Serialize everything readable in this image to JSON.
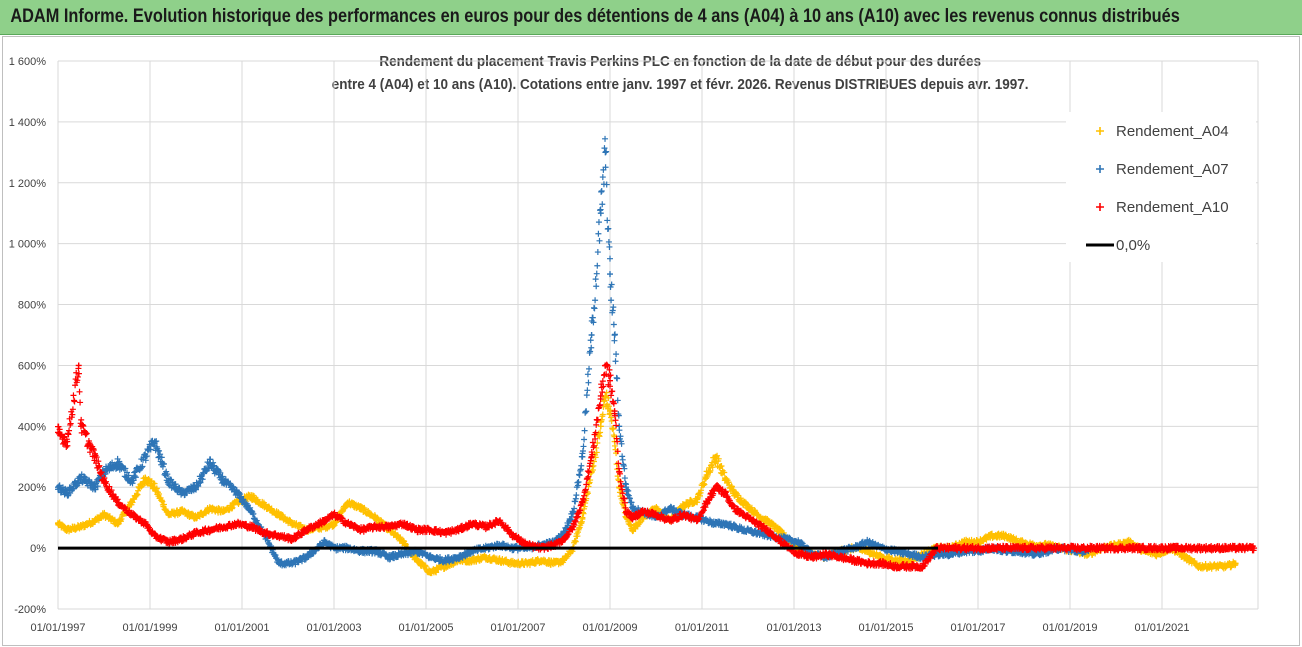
{
  "banner": {
    "title": "ADAM Informe. Evolution historique des performances en euros pour des détentions de 4 ans (A04) à 10 ans (A10) avec les revenus connus distribués"
  },
  "colors": {
    "A04": "#ffc000",
    "A07": "#2e75b6",
    "A10": "#ff0000",
    "zero": "#000000",
    "grid": "#d9d9d9",
    "banner": "#8fd08a"
  },
  "chart_data": {
    "type": "scatter",
    "title_line1": "Rendement du placement Travis Perkins PLC en fonction de la date de début pour des durées",
    "title_line2": "entre 4 (A04) et 10 ans (A10).  Cotations entre janv. 1997 et févr. 2026. Revenus DISTRIBUES depuis avr. 1997.",
    "x_range": [
      1997.0,
      2023.0
    ],
    "ylim": [
      -200,
      1600
    ],
    "y_ticks": [
      {
        "v": 1600,
        "label": "1 600%"
      },
      {
        "v": 1400,
        "label": "1 400%"
      },
      {
        "v": 1200,
        "label": "1 200%"
      },
      {
        "v": 1000,
        "label": "1 000%"
      },
      {
        "v": 800,
        "label": "800%"
      },
      {
        "v": 600,
        "label": "600%"
      },
      {
        "v": 400,
        "label": "400%"
      },
      {
        "v": 200,
        "label": "200%"
      },
      {
        "v": 0,
        "label": "0%"
      },
      {
        "v": -200,
        "label": "-200%"
      }
    ],
    "x_ticks": [
      {
        "v": 1997,
        "label": "01/01/1997"
      },
      {
        "v": 1999,
        "label": "01/01/1999"
      },
      {
        "v": 2001,
        "label": "01/01/2001"
      },
      {
        "v": 2003,
        "label": "01/01/2003"
      },
      {
        "v": 2005,
        "label": "01/01/2005"
      },
      {
        "v": 2007,
        "label": "01/01/2007"
      },
      {
        "v": 2009,
        "label": "01/01/2009"
      },
      {
        "v": 2011,
        "label": "01/01/2011"
      },
      {
        "v": 2013,
        "label": "01/01/2013"
      },
      {
        "v": 2015,
        "label": "01/01/2015"
      },
      {
        "v": 2017,
        "label": "01/01/2017"
      },
      {
        "v": 2019,
        "label": "01/01/2019"
      },
      {
        "v": 2021,
        "label": "01/01/2021"
      }
    ],
    "legend": [
      "Rendement_A04",
      "Rendement_A07",
      "Rendement_A10",
      "0,0%"
    ],
    "series": [
      {
        "name": "Rendement_A04",
        "x": [
          1997.0,
          1997.2,
          1997.5,
          1997.8,
          1998.0,
          1998.3,
          1998.6,
          1998.9,
          1999.1,
          1999.4,
          1999.7,
          2000.0,
          2000.3,
          2000.6,
          2000.9,
          2001.2,
          2001.5,
          2001.8,
          2002.1,
          2002.4,
          2002.8,
          2003.0,
          2003.3,
          2003.6,
          2003.9,
          2004.2,
          2004.5,
          2004.8,
          2005.1,
          2005.4,
          2005.7,
          2006.0,
          2006.3,
          2006.6,
          2006.9,
          2007.2,
          2007.5,
          2007.8,
          2008.0,
          2008.2,
          2008.4,
          2008.6,
          2008.8,
          2008.9,
          2009.0,
          2009.1,
          2009.2,
          2009.35,
          2009.5,
          2009.7,
          2010.0,
          2010.3,
          2010.6,
          2010.9,
          2011.1,
          2011.3,
          2011.5,
          2011.7,
          2011.9,
          2012.2,
          2012.5,
          2012.8,
          2013.1,
          2013.4,
          2013.7,
          2014.0,
          2014.3,
          2014.6,
          2014.9,
          2015.2,
          2015.5,
          2015.8,
          2016.1,
          2016.4,
          2016.7,
          2017.0,
          2017.3,
          2017.6,
          2017.9,
          2018.2,
          2018.5,
          2018.8,
          2019.1,
          2019.4,
          2019.7,
          2020.0,
          2020.3,
          2020.6,
          2020.9,
          2021.2,
          2021.5,
          2021.8,
          2022.1,
          2022.4,
          2022.6
        ],
        "y": [
          80,
          60,
          70,
          90,
          110,
          80,
          150,
          230,
          200,
          110,
          120,
          100,
          130,
          120,
          150,
          170,
          140,
          110,
          80,
          60,
          70,
          80,
          150,
          130,
          100,
          60,
          20,
          -40,
          -80,
          -60,
          -40,
          -40,
          -30,
          -40,
          -50,
          -50,
          -40,
          -50,
          -40,
          0,
          100,
          250,
          400,
          500,
          450,
          350,
          200,
          100,
          60,
          100,
          130,
          90,
          140,
          160,
          240,
          300,
          230,
          180,
          150,
          110,
          80,
          40,
          0,
          -20,
          -30,
          -10,
          0,
          -10,
          -30,
          -40,
          -40,
          -20,
          0,
          0,
          20,
          20,
          40,
          40,
          20,
          10,
          10,
          0,
          -10,
          -20,
          0,
          10,
          20,
          -10,
          -20,
          0,
          -30,
          -60,
          -60,
          -60,
          -50
        ]
      },
      {
        "name": "Rendement_A07",
        "x": [
          1997.0,
          1997.2,
          1997.5,
          1997.8,
          1998.0,
          1998.3,
          1998.6,
          1998.9,
          1999.1,
          1999.4,
          1999.7,
          2000.0,
          2000.3,
          2000.6,
          2000.9,
          2001.2,
          2001.5,
          2001.8,
          2002.1,
          2002.4,
          2002.8,
          2003.0,
          2003.3,
          2003.6,
          2003.9,
          2004.2,
          2004.5,
          2004.8,
          2005.1,
          2005.4,
          2005.7,
          2006.0,
          2006.3,
          2006.6,
          2006.9,
          2007.2,
          2007.5,
          2007.8,
          2008.0,
          2008.2,
          2008.4,
          2008.6,
          2008.8,
          2008.9,
          2009.0,
          2009.1,
          2009.2,
          2009.35,
          2009.5,
          2009.7,
          2010.0,
          2010.3,
          2010.6,
          2010.9,
          2011.1,
          2011.3,
          2011.5,
          2011.7,
          2011.9,
          2012.2,
          2012.5,
          2012.8,
          2013.1,
          2013.4,
          2013.7,
          2014.0,
          2014.3,
          2014.6,
          2014.9,
          2015.2,
          2015.5,
          2015.8,
          2016.1,
          2016.4,
          2016.7,
          2017.0,
          2017.3,
          2017.6,
          2017.9,
          2018.2,
          2018.5,
          2018.8,
          2019.1,
          2019.4
        ],
        "y": [
          200,
          180,
          230,
          200,
          250,
          280,
          220,
          300,
          350,
          220,
          180,
          200,
          280,
          220,
          180,
          120,
          40,
          -50,
          -50,
          -30,
          20,
          0,
          0,
          -10,
          -10,
          -30,
          -20,
          -10,
          -30,
          -40,
          -30,
          -10,
          0,
          10,
          0,
          0,
          10,
          20,
          50,
          120,
          300,
          700,
          1100,
          1300,
          900,
          700,
          400,
          200,
          130,
          120,
          100,
          130,
          110,
          100,
          90,
          80,
          80,
          70,
          60,
          50,
          40,
          30,
          20,
          -20,
          -30,
          -10,
          0,
          20,
          0,
          -10,
          -20,
          -30,
          -20,
          -20,
          -10,
          -10,
          0,
          -10,
          -10,
          -20,
          -10,
          0,
          -10,
          -10
        ]
      },
      {
        "name": "Rendement_A10",
        "x": [
          1997.0,
          1997.2,
          1997.45,
          1997.5,
          1997.8,
          1998.0,
          1998.3,
          1998.6,
          1998.9,
          1999.1,
          1999.4,
          1999.7,
          2000.0,
          2000.3,
          2000.6,
          2000.9,
          2001.2,
          2001.5,
          2001.8,
          2002.1,
          2002.4,
          2002.8,
          2003.0,
          2003.3,
          2003.6,
          2003.9,
          2004.2,
          2004.5,
          2004.8,
          2005.1,
          2005.4,
          2005.7,
          2006.0,
          2006.3,
          2006.6,
          2006.9,
          2007.2,
          2007.5,
          2007.8,
          2008.0,
          2008.2,
          2008.4,
          2008.6,
          2008.8,
          2008.9,
          2009.0,
          2009.1,
          2009.2,
          2009.35,
          2009.5,
          2009.7,
          2010.0,
          2010.3,
          2010.6,
          2010.9,
          2011.1,
          2011.3,
          2011.5,
          2011.7,
          2011.9,
          2012.2,
          2012.5,
          2012.8,
          2013.1,
          2013.4,
          2013.7,
          2014.0,
          2014.3,
          2014.6,
          2014.9,
          2015.2,
          2015.5,
          2015.8,
          2016.1,
          2016.4,
          2016.7,
          2017.0,
          2017.3,
          2017.6,
          2017.9,
          2018.2,
          2018.5,
          2018.8,
          2019.1,
          2019.4,
          2019.7,
          2020.0,
          2020.3,
          2020.6,
          2020.9,
          2021.2,
          2021.5,
          2021.8,
          2022.1,
          2022.4,
          2022.7,
          2023.0
        ],
        "y": [
          380,
          350,
          600,
          400,
          300,
          220,
          150,
          110,
          80,
          40,
          20,
          30,
          50,
          60,
          70,
          80,
          70,
          50,
          40,
          30,
          60,
          90,
          110,
          80,
          60,
          70,
          70,
          80,
          60,
          60,
          50,
          60,
          80,
          70,
          90,
          40,
          10,
          0,
          10,
          30,
          70,
          150,
          300,
          500,
          600,
          550,
          450,
          250,
          120,
          100,
          120,
          110,
          90,
          110,
          90,
          150,
          200,
          180,
          130,
          110,
          80,
          50,
          10,
          -20,
          -30,
          -20,
          -30,
          -40,
          -50,
          -50,
          -60,
          -60,
          -60,
          0,
          0,
          0,
          0,
          0,
          0,
          0,
          0,
          0,
          0,
          0,
          0,
          0,
          0,
          0,
          0,
          0,
          0,
          0,
          0,
          0,
          0,
          0,
          0
        ]
      }
    ]
  }
}
